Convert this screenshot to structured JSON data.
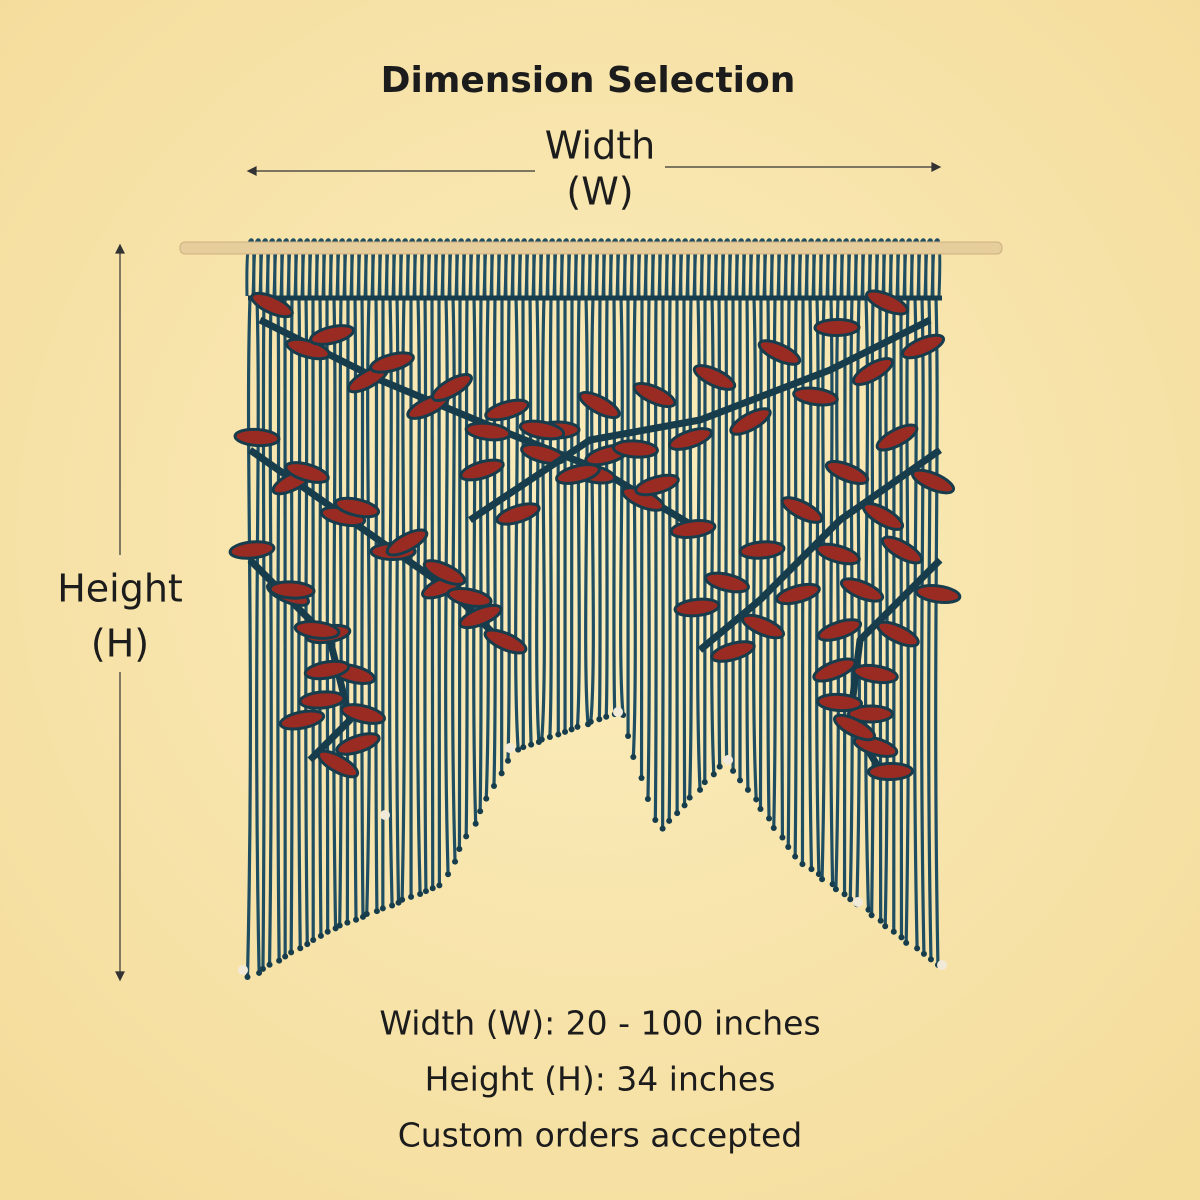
{
  "header": {
    "title": "Dimension Selection"
  },
  "width_label": {
    "name": "Width",
    "symbol": "(W)"
  },
  "height_label": {
    "name": "Height",
    "symbol": "(H)"
  },
  "specs": [
    "Width (W): 20 - 100 inches",
    "Height (H): 34 inches",
    "Custom orders accepted"
  ]
}
